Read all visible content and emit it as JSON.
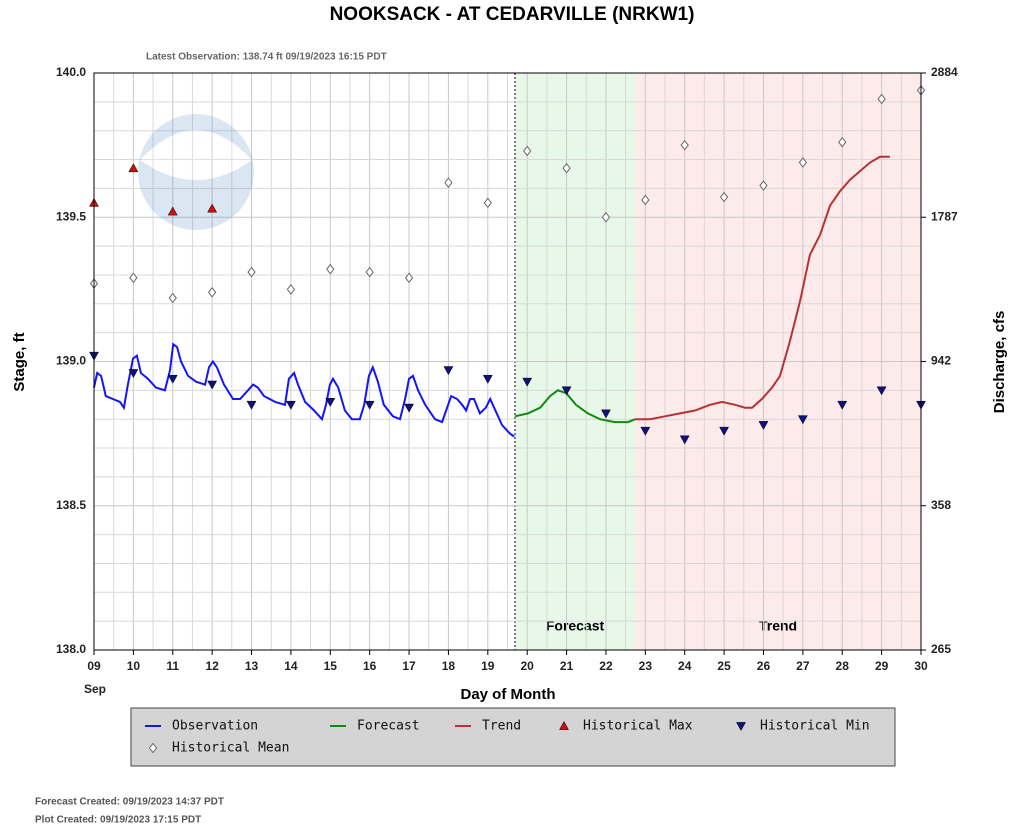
{
  "chart_data": {
    "type": "line",
    "title": "NOOKSACK - AT CEDARVILLE  (NRKW1)",
    "subtitle": "Latest Observation: 138.74 ft 09/19/2023 16:15 PDT",
    "x_label": "Day of Month",
    "x_sublabel": "Sep",
    "y_label": "Stage, ft",
    "y2_label": "Discharge, cfs",
    "xlim": [
      9,
      30
    ],
    "xticks": [
      {
        "value": 9,
        "label": "09"
      },
      10,
      11,
      12,
      13,
      14,
      15,
      16,
      17,
      18,
      19,
      20,
      21,
      22,
      23,
      24,
      25,
      26,
      27,
      28,
      29,
      30
    ],
    "ylim": [
      138,
      140
    ],
    "yticks": [
      {
        "value": 138,
        "label": "138.0"
      },
      138.5,
      {
        "value": 139,
        "label": "139.0"
      },
      139.5,
      {
        "value": 140,
        "label": "140.0"
      }
    ],
    "y2lim": [
      265,
      2884
    ],
    "y2ticks": [
      265,
      358,
      942,
      1787,
      2884
    ],
    "grid": true,
    "minor_grid": true,
    "regions": [
      {
        "label": "Forecast",
        "start": 19.69,
        "end": 22.74,
        "color": "#e8f8e8"
      },
      {
        "label": "Trend",
        "start": 22.74,
        "end": 30,
        "color": "#fdeaea"
      }
    ],
    "series": [
      {
        "name": "Observation",
        "style": "line",
        "color": "#1414ff",
        "x": [
          9.0,
          9.08,
          9.18,
          9.3,
          9.48,
          9.66,
          9.76,
          9.86,
          9.99,
          10.09,
          10.19,
          10.37,
          10.57,
          10.8,
          10.93,
          11.01,
          11.11,
          11.21,
          11.39,
          11.59,
          11.82,
          11.92,
          12.02,
          12.12,
          12.3,
          12.53,
          12.71,
          12.91,
          13.04,
          13.16,
          13.32,
          13.6,
          13.85,
          13.95,
          14.08,
          14.18,
          14.36,
          14.59,
          14.79,
          14.89,
          14.99,
          15.07,
          15.2,
          15.37,
          15.55,
          15.75,
          15.86,
          15.98,
          16.08,
          16.21,
          16.36,
          16.59,
          16.77,
          16.9,
          17.0,
          17.1,
          17.23,
          17.41,
          17.66,
          17.84,
          17.94,
          18.07,
          18.22,
          18.35,
          18.45,
          18.55,
          18.65,
          18.8,
          18.95,
          19.06,
          19.16,
          19.36,
          19.56,
          19.67
        ],
        "values": [
          138.91,
          138.96,
          138.95,
          138.88,
          138.87,
          138.86,
          138.84,
          138.92,
          139.01,
          139.02,
          138.96,
          138.94,
          138.91,
          138.9,
          138.97,
          139.06,
          139.05,
          139.0,
          138.95,
          138.93,
          138.92,
          138.98,
          139.0,
          138.98,
          138.92,
          138.87,
          138.87,
          138.9,
          138.92,
          138.91,
          138.88,
          138.86,
          138.85,
          138.94,
          138.96,
          138.92,
          138.86,
          138.83,
          138.8,
          138.85,
          138.92,
          138.94,
          138.91,
          138.83,
          138.8,
          138.8,
          138.85,
          138.95,
          138.98,
          138.93,
          138.85,
          138.81,
          138.8,
          138.87,
          138.94,
          138.95,
          138.9,
          138.85,
          138.8,
          138.79,
          138.83,
          138.88,
          138.87,
          138.85,
          138.83,
          138.87,
          138.87,
          138.82,
          138.84,
          138.87,
          138.84,
          138.78,
          138.75,
          138.74
        ]
      },
      {
        "name": "Forecast",
        "style": "line",
        "color": "#108a10",
        "x": [
          19.69,
          20.02,
          20.33,
          20.58,
          20.78,
          20.99,
          21.24,
          21.54,
          21.85,
          22.23,
          22.56,
          22.74
        ],
        "values": [
          138.81,
          138.82,
          138.84,
          138.88,
          138.9,
          138.89,
          138.85,
          138.82,
          138.8,
          138.79,
          138.79,
          138.8
        ]
      },
      {
        "name": "Trend",
        "style": "line",
        "color": "#b83232",
        "x": [
          22.74,
          23.12,
          23.5,
          23.88,
          24.26,
          24.64,
          24.95,
          25.28,
          25.53,
          25.71,
          25.96,
          26.22,
          26.42,
          26.67,
          26.93,
          27.18,
          27.44,
          27.69,
          27.94,
          28.2,
          28.45,
          28.71,
          28.96,
          29.21
        ],
        "values": [
          138.8,
          138.8,
          138.81,
          138.82,
          138.83,
          138.85,
          138.86,
          138.85,
          138.84,
          138.84,
          138.87,
          138.91,
          138.95,
          139.07,
          139.21,
          139.37,
          139.44,
          139.54,
          139.59,
          139.63,
          139.66,
          139.69,
          139.71,
          139.71
        ]
      },
      {
        "name": "Historical Max",
        "style": "triangle-up",
        "color": "#cc1010",
        "x": [
          9,
          10,
          11,
          12
        ],
        "values": [
          139.55,
          139.67,
          139.52,
          139.53
        ]
      },
      {
        "name": "Historical Min",
        "style": "triangle-down",
        "color": "#101080",
        "x": [
          9,
          10,
          11,
          12,
          13,
          14,
          15,
          16,
          17,
          18,
          19,
          20,
          21,
          22,
          23,
          24,
          25,
          26,
          27,
          28,
          29,
          30
        ],
        "values": [
          139.02,
          138.96,
          138.94,
          138.92,
          138.85,
          138.85,
          138.86,
          138.85,
          138.84,
          138.97,
          138.94,
          138.93,
          138.9,
          138.82,
          138.76,
          138.73,
          138.76,
          138.78,
          138.8,
          138.85,
          138.9,
          138.85
        ]
      },
      {
        "name": "Historical Mean",
        "style": "diamond",
        "color": "#666666",
        "x": [
          9,
          10,
          11,
          12,
          13,
          14,
          15,
          16,
          17,
          18,
          19,
          20,
          21,
          22,
          23,
          24,
          25,
          26,
          27,
          28,
          29,
          30
        ],
        "values": [
          139.27,
          139.29,
          139.22,
          139.24,
          139.31,
          139.25,
          139.32,
          139.31,
          139.29,
          139.62,
          139.55,
          139.73,
          139.67,
          139.5,
          139.56,
          139.75,
          139.57,
          139.61,
          139.69,
          139.76,
          139.91,
          139.94
        ]
      }
    ],
    "notes": [
      "Forecast Created: 09/19/2023 14:37 PDT",
      "Plot Created: 09/19/2023 17:15 PDT"
    ]
  }
}
